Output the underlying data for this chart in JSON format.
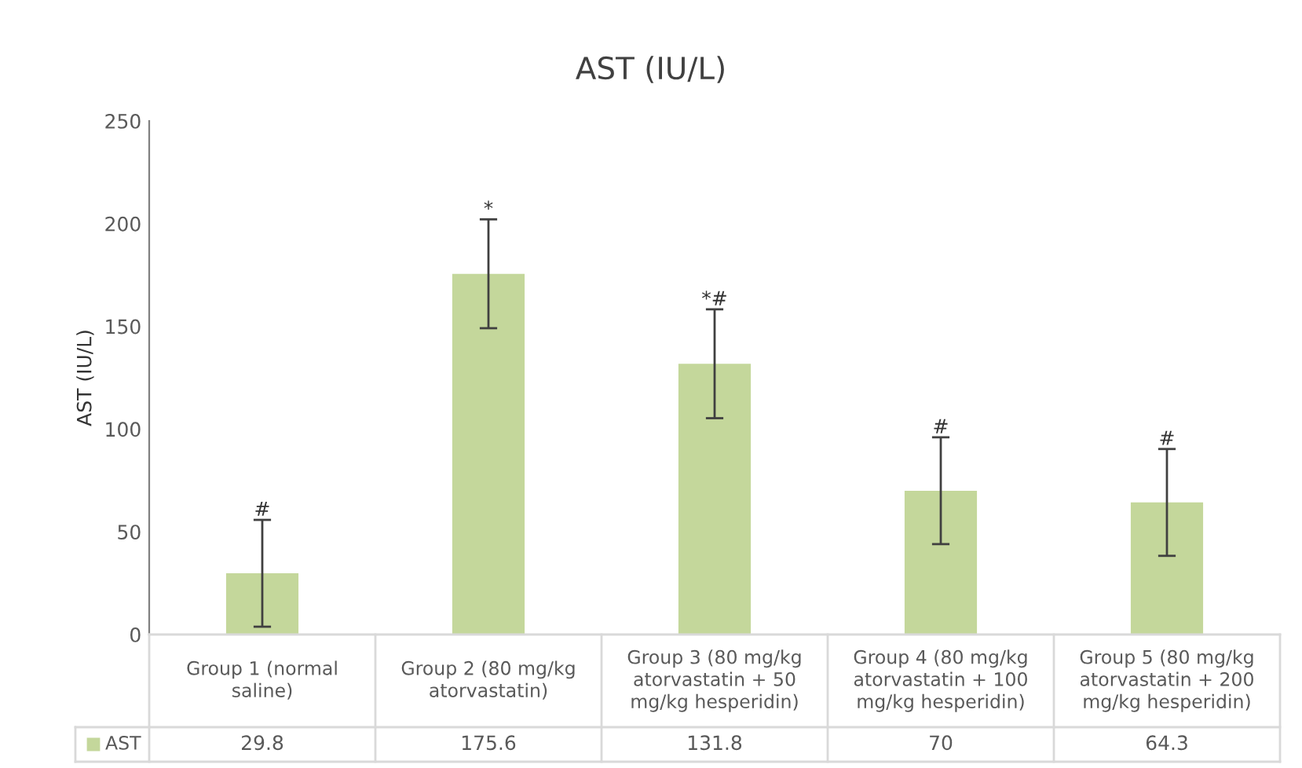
{
  "chart_data": {
    "type": "bar",
    "title": "AST (IU/L)",
    "ylabel": "AST (IU/L)",
    "categories": [
      "Group 1 (normal saline)",
      "Group 2 (80 mg/kg atorvastatin)",
      "Group 3 (80 mg/kg atorvastatin + 50 mg/kg hesperidin)",
      "Group 4 (80 mg/kg atorvastatin + 100 mg/kg hesperidin)",
      "Group 5 (80 mg/kg atorvastatin + 200 mg/kg hesperidin)"
    ],
    "series": [
      {
        "name": "AST",
        "color": "#c4d79b",
        "values": [
          29.8,
          175.6,
          131.8,
          70,
          64.3
        ],
        "errors": [
          26,
          26.5,
          26.5,
          26,
          26
        ]
      }
    ],
    "ylim": [
      0,
      250
    ],
    "yticks": [
      0,
      50,
      100,
      150,
      200,
      250
    ],
    "grid": false,
    "data_labels": true,
    "legend": "bottom",
    "annotations": [
      {
        "text": "#",
        "x": "Group 1 (normal saline)",
        "y": 55.8
      },
      {
        "text": "*",
        "x": "Group 2 (80 mg/kg atorvastatin)",
        "y": 202.1
      },
      {
        "text": "*#",
        "x": "Group 3 (80 mg/kg atorvastatin + 50 mg/kg hesperidin)",
        "y": 158.3
      },
      {
        "text": "#",
        "x": "Group 4 (80 mg/kg atorvastatin + 100 mg/kg hesperidin)",
        "y": 96
      },
      {
        "text": "#",
        "x": "Group 5 (80 mg/kg atorvastatin + 200 mg/kg hesperidin)",
        "y": 90.3
      }
    ]
  }
}
